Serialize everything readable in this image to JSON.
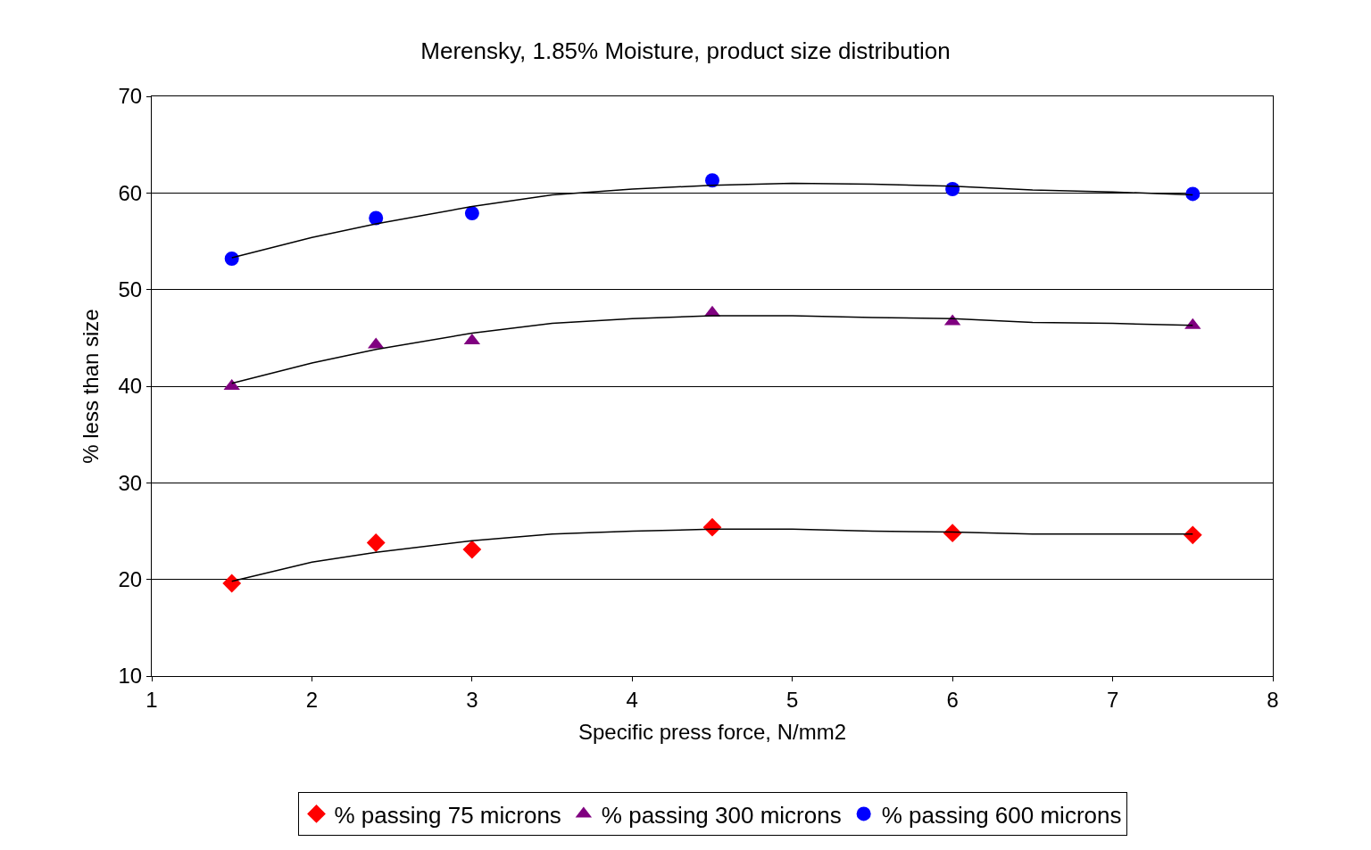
{
  "chart_data": {
    "type": "scatter",
    "title": "Merensky, 1.85% Moisture, product size distribution",
    "xlabel": "Specific press force, N/mm2",
    "ylabel": "% less than size",
    "x": [
      1.5,
      2.4,
      3,
      4.5,
      6,
      7.5
    ],
    "series": [
      {
        "name": "% passing 75 microns",
        "color": "#ff0000",
        "marker": "diamond",
        "values": [
          19.6,
          23.8,
          23.1,
          25.4,
          24.8,
          24.6
        ]
      },
      {
        "name": "% passing 300 microns",
        "color": "#800080",
        "marker": "triangle",
        "values": [
          40.0,
          44.3,
          44.7,
          47.6,
          46.7,
          46.3
        ]
      },
      {
        "name": "% passing 600 microns",
        "color": "#0000ff",
        "marker": "circle",
        "values": [
          53.2,
          57.4,
          57.9,
          61.3,
          60.4,
          59.9
        ]
      },
      {
        "type": "line",
        "color": "#000000",
        "x": [
          1.5,
          2,
          2.4,
          3,
          3.5,
          4,
          4.5,
          5,
          5.5,
          6,
          6.5,
          7,
          7.5
        ],
        "values": [
          19.8,
          21.8,
          22.8,
          24.0,
          24.7,
          25.0,
          25.2,
          25.2,
          25.0,
          24.9,
          24.7,
          24.7,
          24.7
        ]
      },
      {
        "type": "line",
        "color": "#000000",
        "x": [
          1.5,
          2,
          2.4,
          3,
          3.5,
          4,
          4.5,
          5,
          5.5,
          6,
          6.5,
          7,
          7.5
        ],
        "values": [
          40.3,
          42.4,
          43.8,
          45.5,
          46.5,
          47.0,
          47.3,
          47.3,
          47.1,
          47.0,
          46.6,
          46.5,
          46.3
        ]
      },
      {
        "type": "line",
        "color": "#000000",
        "x": [
          1.5,
          2,
          2.4,
          3,
          3.5,
          4,
          4.5,
          5,
          5.5,
          6,
          6.5,
          7,
          7.5
        ],
        "values": [
          53.3,
          55.4,
          56.8,
          58.6,
          59.8,
          60.4,
          60.8,
          61.0,
          60.9,
          60.7,
          60.3,
          60.1,
          59.8
        ]
      }
    ],
    "xlim": [
      1,
      8
    ],
    "xticks": [
      1,
      2,
      3,
      4,
      5,
      6,
      7,
      8
    ],
    "ylim": [
      10,
      70
    ],
    "yticks": [
      10,
      20,
      30,
      40,
      50,
      60,
      70
    ],
    "grid": "y",
    "legend": "bottom"
  }
}
